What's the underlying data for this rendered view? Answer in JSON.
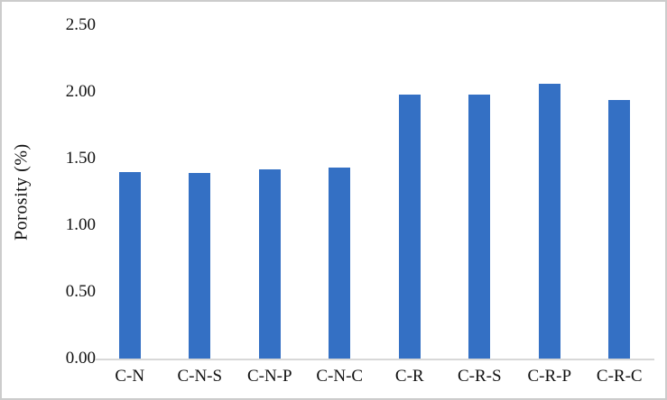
{
  "figure": {
    "kind": "static-bar-chart-figure"
  },
  "colors": {
    "bar": "#3470C4",
    "axis_line": "#d8d8d8",
    "figure_border": "#cccccc",
    "text": "#111111"
  },
  "chart_data": {
    "type": "bar",
    "title": "",
    "xlabel": "",
    "ylabel": "Porosity (%)",
    "categories": [
      "C-N",
      "C-N-S",
      "C-N-P",
      "C-N-C",
      "C-R",
      "C-R-S",
      "C-R-P",
      "C-R-C"
    ],
    "values": [
      1.4,
      1.39,
      1.42,
      1.43,
      1.98,
      1.98,
      2.06,
      1.94
    ],
    "ylim": [
      0.0,
      2.5
    ],
    "ytick_values": [
      0.0,
      0.5,
      1.0,
      1.5,
      2.0,
      2.5
    ],
    "ytick_labels": [
      "0.00",
      "0.50",
      "1.00",
      "1.50",
      "2.00",
      "2.50"
    ],
    "grid": false,
    "legend_position": "none",
    "bar_color": "#3470C4"
  }
}
